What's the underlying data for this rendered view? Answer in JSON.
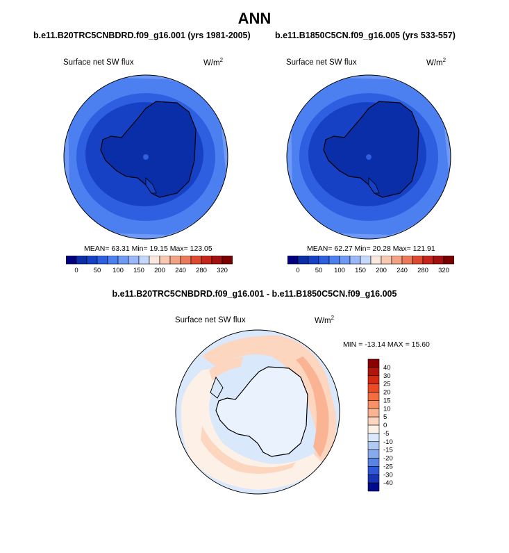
{
  "figure": {
    "title": "ANN",
    "panels": [
      {
        "case_title": "b.e11.B20TRC5CNBDRD.f09_g16.001 (yrs 1981-2005)",
        "variable": "Surface net SW flux",
        "units_base": "W/m",
        "units_exp": "2",
        "stats": "MEAN=  63.31  Min=  19.15  Max= 123.05"
      },
      {
        "case_title": "b.e11.B1850C5CN.f09_g16.005 (yrs 533-557)",
        "variable": "Surface net SW flux",
        "units_base": "W/m",
        "units_exp": "2",
        "stats": "MEAN=  62.27  Min=  20.28  Max= 121.91"
      }
    ],
    "diff_panel": {
      "case_title": "b.e11.B20TRC5CNBDRD.f09_g16.001 - b.e11.B1850C5CN.f09_g16.005",
      "variable": "Surface net SW flux",
      "units_base": "W/m",
      "units_exp": "2",
      "stats": "MIN = -13.14 MAX =  15.60"
    }
  },
  "chart_data": [
    {
      "type": "heatmap",
      "title": "b.e11.B20TRC5CNBDRD.f09_g16.001 (yrs 1981-2005)",
      "projection": "polar stereographic (south)",
      "mean": 63.31,
      "min": 19.15,
      "max": 123.05,
      "colorbar": {
        "levels": [
          0,
          25,
          50,
          75,
          100,
          125,
          150,
          175,
          200,
          220,
          240,
          260,
          280,
          300,
          320
        ],
        "tick_labels": [
          "0",
          "50",
          "100",
          "150",
          "200",
          "240",
          "280",
          "320"
        ],
        "colors": [
          "#000080",
          "#0a2ea8",
          "#1641c4",
          "#2d5fe0",
          "#4c7ff0",
          "#6e9af5",
          "#9ab8f9",
          "#c6d9fc",
          "#fbe8df",
          "#f8c8b0",
          "#f3a283",
          "#ec7a5a",
          "#dd4a30",
          "#c4241a",
          "#a21010",
          "#7a0000"
        ]
      }
    },
    {
      "type": "heatmap",
      "title": "b.e11.B1850C5CN.f09_g16.005 (yrs 533-557)",
      "projection": "polar stereographic (south)",
      "mean": 62.27,
      "min": 20.28,
      "max": 121.91,
      "colorbar": {
        "levels": [
          0,
          25,
          50,
          75,
          100,
          125,
          150,
          175,
          200,
          220,
          240,
          260,
          280,
          300,
          320
        ],
        "tick_labels": [
          "0",
          "50",
          "100",
          "150",
          "200",
          "240",
          "280",
          "320"
        ],
        "colors": [
          "#000080",
          "#0a2ea8",
          "#1641c4",
          "#2d5fe0",
          "#4c7ff0",
          "#6e9af5",
          "#9ab8f9",
          "#c6d9fc",
          "#fbe8df",
          "#f8c8b0",
          "#f3a283",
          "#ec7a5a",
          "#dd4a30",
          "#c4241a",
          "#a21010",
          "#7a0000"
        ]
      }
    },
    {
      "type": "heatmap",
      "title": "b.e11.B20TRC5CNBDRD.f09_g16.001 - b.e11.B1850C5CN.f09_g16.005",
      "projection": "polar stereographic (south)",
      "min": -13.14,
      "max": 15.6,
      "colorbar": {
        "levels": [
          40,
          30,
          25,
          20,
          15,
          10,
          5,
          0,
          -5,
          -10,
          -15,
          -20,
          -25,
          -30,
          -40
        ],
        "tick_labels": [
          "40",
          "30",
          "25",
          "20",
          "15",
          "10",
          "5",
          "0",
          "-5",
          "-10",
          "-15",
          "-20",
          "-25",
          "-30",
          "-40"
        ],
        "colors": [
          "#8b0000",
          "#b2150c",
          "#d62a12",
          "#ec4a22",
          "#f46c40",
          "#f89266",
          "#fbb493",
          "#fdd6c0",
          "#fdf0e6",
          "#d9e8fb",
          "#b0ccf5",
          "#86aaee",
          "#5a83e6",
          "#2e58d8",
          "#1634b4",
          "#000a8c"
        ]
      }
    }
  ]
}
